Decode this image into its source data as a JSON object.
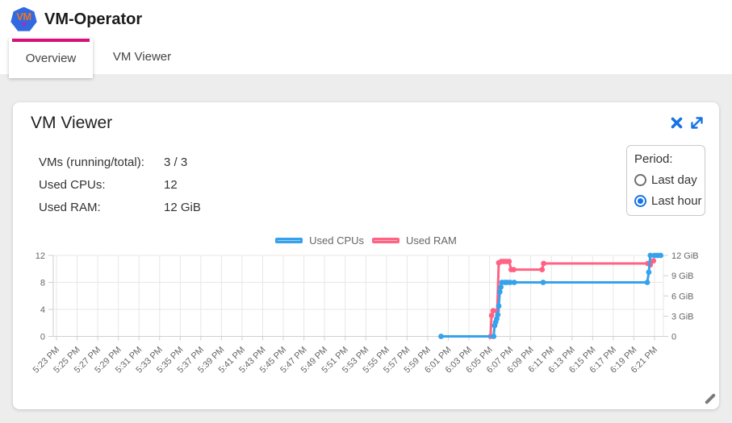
{
  "header": {
    "title": "VM-Operator",
    "logo_text": "VM"
  },
  "tabs": [
    {
      "label": "Overview",
      "active": true
    },
    {
      "label": "VM Viewer",
      "active": false
    }
  ],
  "card": {
    "title": "VM Viewer",
    "icons": [
      "close-icon",
      "expand-icon"
    ],
    "stats": [
      {
        "label": "VMs (running/total):",
        "value": "3 / 3"
      },
      {
        "label": "Used CPUs:",
        "value": "12"
      },
      {
        "label": "Used RAM:",
        "value": "12 GiB"
      }
    ],
    "period": {
      "label": "Period:",
      "options": [
        {
          "label": "Last day",
          "selected": false
        },
        {
          "label": "Last hour",
          "selected": true
        }
      ]
    }
  },
  "colors": {
    "accent_blue": "#1673e6",
    "tab_indicator": "#d4127a",
    "logo_blue": "#3069e0",
    "logo_orange": "#e8752a",
    "logo_purple": "#b229bd",
    "cpu": "#36a2eb",
    "cpu_fill": "#9bd0f5",
    "ram": "#ff6384",
    "ram_fill": "#ffb1c1",
    "grid": "#e7e7e7",
    "axis": "#cfcfcf",
    "tick_text": "#666666"
  },
  "chart_data": {
    "type": "line",
    "title": "",
    "x_unit": "time (minutes after 5:23 PM, 2-min ticks)",
    "x_tick_labels": [
      "5:23 PM",
      "5:25 PM",
      "5:27 PM",
      "5:29 PM",
      "5:31 PM",
      "5:33 PM",
      "5:35 PM",
      "5:37 PM",
      "5:39 PM",
      "5:41 PM",
      "5:43 PM",
      "5:45 PM",
      "5:47 PM",
      "5:49 PM",
      "5:51 PM",
      "5:53 PM",
      "5:55 PM",
      "5:57 PM",
      "5:59 PM",
      "6:01 PM",
      "6:03 PM",
      "6:05 PM",
      "6:07 PM",
      "6:09 PM",
      "6:11 PM",
      "6:13 PM",
      "6:15 PM",
      "6:17 PM",
      "6:19 PM",
      "6:21 PM"
    ],
    "grid": true,
    "legend_position": "top-center",
    "y_left": {
      "label": "CPUs",
      "ticks": [
        0,
        4,
        8,
        12
      ],
      "range": [
        0,
        12
      ]
    },
    "y_right": {
      "label": "RAM",
      "ticks": [
        "0",
        "3 GiB",
        "6 GiB",
        "9 GiB",
        "12 GiB"
      ],
      "values": [
        0,
        3,
        6,
        9,
        12
      ],
      "range": [
        0,
        12
      ]
    },
    "series": [
      {
        "name": "Used CPUs",
        "axis": "left",
        "color": "#36a2eb",
        "points": [
          [
            37.3,
            0
          ],
          [
            42.4,
            0
          ],
          [
            42.5,
            1.6
          ],
          [
            42.6,
            2.1
          ],
          [
            42.7,
            2.6
          ],
          [
            42.8,
            3.2
          ],
          [
            42.9,
            4.5
          ],
          [
            43.0,
            6.6
          ],
          [
            43.1,
            7.3
          ],
          [
            43.2,
            8
          ],
          [
            43.5,
            8
          ],
          [
            43.7,
            8
          ],
          [
            44.0,
            8
          ],
          [
            44.4,
            8
          ],
          [
            47.2,
            8
          ],
          [
            57.3,
            8
          ],
          [
            57.45,
            9.5
          ],
          [
            57.6,
            12
          ],
          [
            58.0,
            12
          ],
          [
            58.3,
            12
          ],
          [
            58.6,
            12
          ]
        ]
      },
      {
        "name": "Used RAM",
        "axis": "right",
        "color": "#ff6384",
        "points": [
          [
            42.1,
            0
          ],
          [
            42.2,
            3.1
          ],
          [
            42.35,
            3.8
          ],
          [
            42.75,
            3.8
          ],
          [
            42.9,
            10.9
          ],
          [
            43.15,
            11.1
          ],
          [
            43.4,
            11.1
          ],
          [
            43.65,
            11.1
          ],
          [
            43.9,
            11.1
          ],
          [
            44.1,
            9.9
          ],
          [
            44.35,
            9.9
          ],
          [
            47.1,
            9.9
          ],
          [
            47.25,
            10.8
          ],
          [
            57.35,
            10.8
          ],
          [
            57.6,
            10.6
          ],
          [
            57.9,
            11.2
          ]
        ]
      }
    ]
  }
}
